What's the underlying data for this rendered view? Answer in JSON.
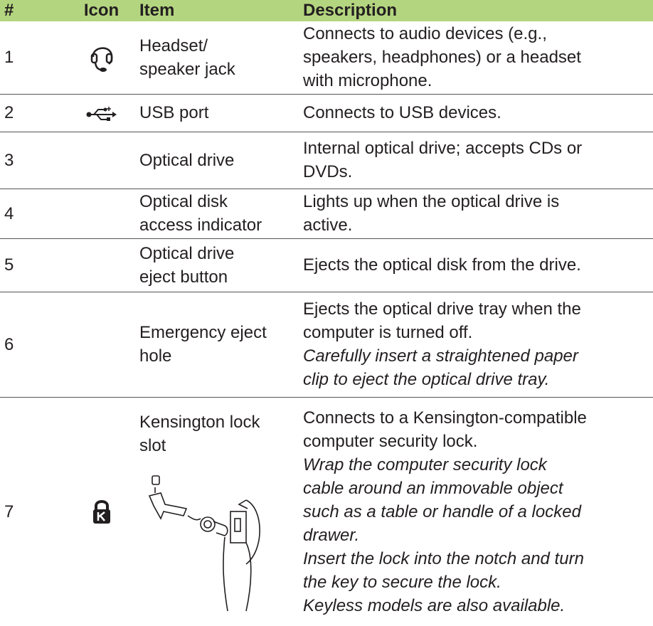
{
  "table": {
    "header": [
      "#",
      "Icon",
      "Item",
      "Description"
    ],
    "rows": [
      {
        "number": "1",
        "item": [
          "Headset/",
          "speaker jack"
        ],
        "description": [
          "Connects to audio devices (e.g.,",
          "speakers, headphones) or a headset",
          "with microphone."
        ]
      },
      {
        "number": "2",
        "item": [
          "USB port"
        ],
        "description": [
          "Connects to USB devices."
        ]
      },
      {
        "number": "3",
        "item": [
          "Optical drive"
        ],
        "description": [
          "Internal optical drive; accepts CDs or",
          "DVDs."
        ]
      },
      {
        "number": "4",
        "item": [
          "Optical disk",
          "access indicator"
        ],
        "description": [
          "Lights up when the optical drive is",
          "active."
        ]
      },
      {
        "number": "5",
        "item": [
          "Optical drive",
          "eject button"
        ],
        "description": [
          "Ejects the optical disk from the drive."
        ]
      },
      {
        "number": "6",
        "item": [
          "Emergency eject",
          "hole"
        ],
        "description": [
          "Ejects the optical drive tray when the",
          "computer is turned off."
        ],
        "note": [
          "Carefully insert a straightened paper",
          "clip to eject the optical drive tray."
        ]
      },
      {
        "number": "7",
        "item": [
          "Kensington lock",
          "slot"
        ],
        "description": [
          "Connects to a Kensington-compatible",
          "computer security lock."
        ],
        "note": [
          "Wrap the computer security lock",
          "cable around an immovable object",
          "such as a table or handle of a locked",
          "drawer.",
          "Insert the lock into the notch and turn",
          "the key to secure the lock.",
          "Keyless models are also available."
        ]
      }
    ]
  }
}
